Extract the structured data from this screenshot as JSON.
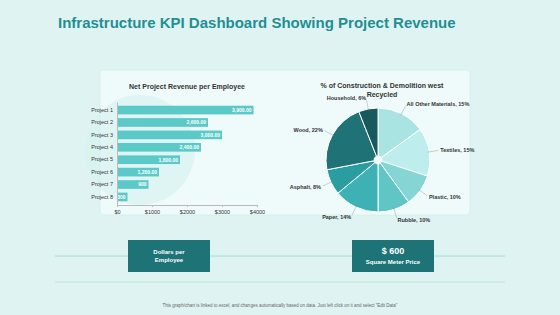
{
  "title": "Infrastructure KPI Dashboard Showing Project Revenue",
  "chart_data": [
    {
      "type": "bar",
      "orientation": "horizontal",
      "title": "Net Project Revenue per Employee",
      "categories": [
        "Project 1",
        "Project 2",
        "Project 3",
        "Project 4",
        "Project 5",
        "Project 6",
        "Project 7",
        "Project 8"
      ],
      "values": [
        3900,
        2600,
        3000,
        2400,
        1800,
        1200,
        900,
        300
      ],
      "value_labels": [
        "3,900.00",
        "2,600.00",
        "3,000.00",
        "2,400.00",
        "1,800.00",
        "1,200.00",
        "900",
        "300"
      ],
      "data_labels": true,
      "color": "#5cc9c9",
      "xlim": [
        0,
        4000
      ],
      "xticks": [
        {
          "value": 0,
          "label": "$0"
        },
        {
          "value": 1000,
          "label": "$1000"
        },
        {
          "value": 2000,
          "label": "$2000"
        },
        {
          "value": 3000,
          "label": "$3000"
        },
        {
          "value": 4000,
          "label": "$4000"
        }
      ]
    },
    {
      "type": "pie",
      "title": "% of Construction & Demolition west Recycled",
      "categories": [
        "All Other Materials",
        "Textiles",
        "Plastic",
        "Rubble",
        "Paper",
        "Asphalt",
        "Wood",
        "Household"
      ],
      "values": [
        15,
        15,
        10,
        10,
        14,
        8,
        22,
        6
      ],
      "value_labels": [
        "15%",
        "15%",
        "10%",
        "10%",
        "14%",
        "8%",
        "22%",
        "6%"
      ],
      "data_labels": true,
      "colors": [
        "#a9e4e3",
        "#bdeeed",
        "#84d5d4",
        "#5fc5c5",
        "#3db1b3",
        "#2a9da1",
        "#1f7377",
        "#17595d"
      ]
    }
  ],
  "kpis": [
    {
      "label": "Dollars per Employee"
    },
    {
      "value_text": "$ 600",
      "label": "Square Meter Price"
    }
  ],
  "footer": "This graph/chart is linked to excel, and changes automatically based on data. Just left click on it and select \"Edit Data\""
}
